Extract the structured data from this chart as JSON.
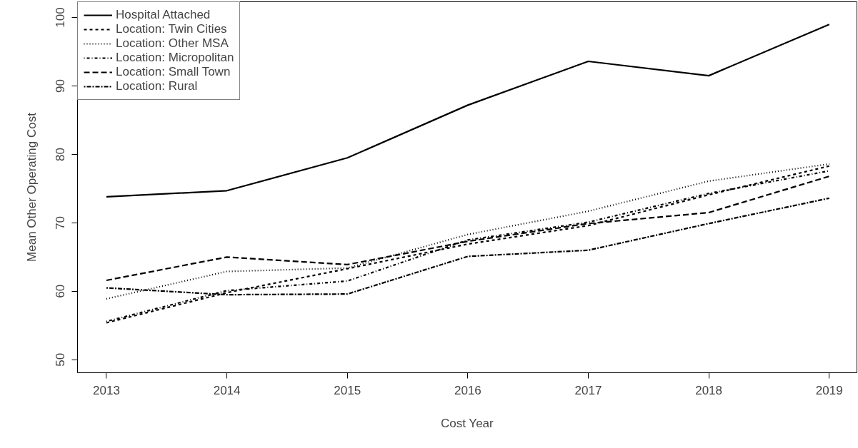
{
  "chart_data": {
    "type": "line",
    "xlabel": "Cost Year",
    "ylabel": "Mean Other Operating Cost",
    "x": [
      2013,
      2014,
      2015,
      2016,
      2017,
      2018,
      2019
    ],
    "xlim": [
      2012.76,
      2019.23
    ],
    "xticks": [
      2013,
      2014,
      2015,
      2016,
      2017,
      2018,
      2019
    ],
    "ylim": [
      48.1,
      102.3
    ],
    "yticks": [
      50,
      60,
      70,
      80,
      90,
      100
    ],
    "grid": false,
    "legend": "top left",
    "marker": "none",
    "series": [
      {
        "name": "Hospital Attached",
        "color": "#000000",
        "line_style": "solid",
        "values": [
          73.8,
          74.7,
          79.5,
          87.2,
          93.6,
          91.5,
          99.0
        ]
      },
      {
        "name": "Location: Twin Cities",
        "color": "#000000",
        "line_style": "dashed",
        "values": [
          55.4,
          59.8,
          63.3,
          66.9,
          69.6,
          74.1,
          78.3
        ]
      },
      {
        "name": "Location: Other MSA",
        "color": "#000000",
        "line_style": "dotted",
        "values": [
          58.9,
          62.9,
          63.4,
          68.3,
          71.7,
          76.1,
          78.6
        ]
      },
      {
        "name": "Location: Micropolitan",
        "color": "#000000",
        "line_style": "dashdot",
        "values": [
          55.6,
          60.1,
          61.5,
          67.5,
          70.1,
          74.3,
          77.6
        ]
      },
      {
        "name": "Location: Small Town",
        "color": "#000000",
        "line_style": "longdash",
        "values": [
          61.6,
          65.0,
          63.9,
          67.3,
          69.9,
          71.5,
          76.8
        ]
      },
      {
        "name": "Location: Rural",
        "color": "#000000",
        "line_style": "twodash",
        "values": [
          60.5,
          59.5,
          59.6,
          65.1,
          66.0,
          69.9,
          73.6
        ]
      }
    ]
  }
}
